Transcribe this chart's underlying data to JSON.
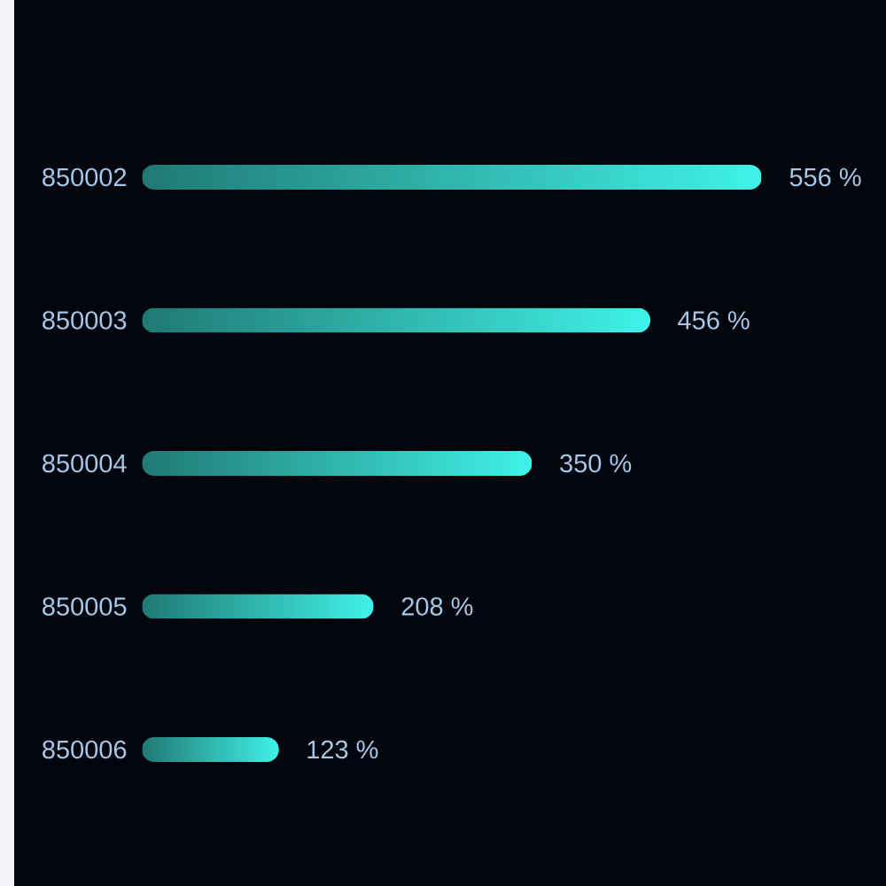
{
  "chart_data": {
    "type": "bar",
    "orientation": "horizontal",
    "categories": [
      "850002",
      "850003",
      "850004",
      "850005",
      "850006"
    ],
    "values": [
      556,
      456,
      350,
      208,
      123
    ],
    "value_labels": [
      "556 %",
      "456 %",
      "350 %",
      "208 %",
      "123 %"
    ],
    "color": "#40f2e8"
  }
}
